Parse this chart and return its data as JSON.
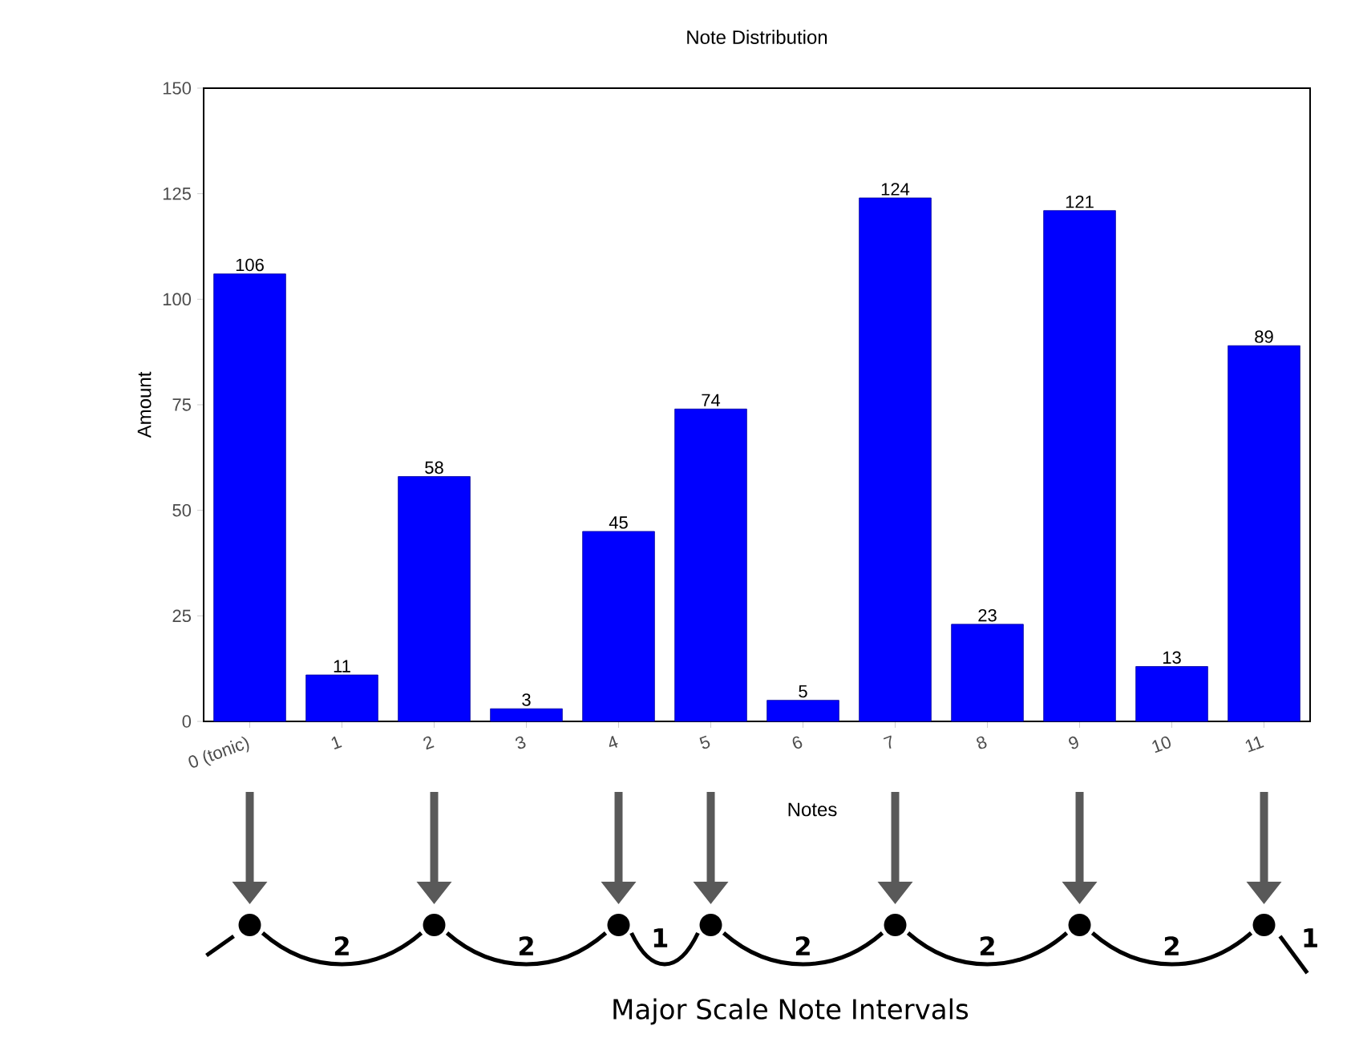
{
  "chart_data": {
    "type": "bar",
    "title": "Note Distribution",
    "xlabel": "Notes",
    "ylabel": "Amount",
    "categories": [
      "0 (tonic)",
      "1",
      "2",
      "3",
      "4",
      "5",
      "6",
      "7",
      "8",
      "9",
      "10",
      "11"
    ],
    "values": [
      106,
      11,
      58,
      3,
      45,
      74,
      5,
      124,
      23,
      121,
      13,
      89
    ],
    "color": "#0000ff",
    "data_labels": true,
    "grid": false,
    "ylim": [
      0,
      150
    ],
    "yticks": [
      0,
      25,
      50,
      75,
      100,
      125,
      150
    ],
    "annotations": [
      "2",
      "2",
      "1",
      "2",
      "2",
      "2",
      "1",
      "Major Scale Note Intervals"
    ]
  }
}
